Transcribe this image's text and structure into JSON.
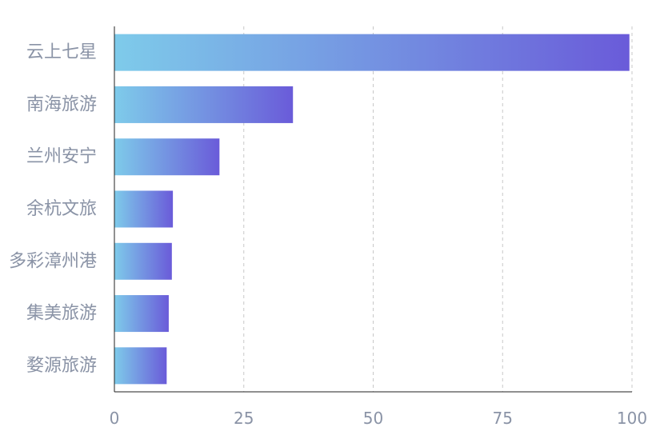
{
  "chart_data": {
    "type": "bar",
    "orientation": "horizontal",
    "categories": [
      "云上七星",
      "南海旅游",
      "兰州安宁",
      "余杭文旅",
      "多彩漳州港",
      "集美旅游",
      "婺源旅游"
    ],
    "values": [
      99.5,
      34.5,
      20.3,
      11.3,
      11.1,
      10.5,
      10.1
    ],
    "xlim": [
      0,
      100
    ],
    "xticks": [
      0,
      25,
      50,
      75,
      100
    ],
    "xtick_labels": [
      "0",
      "25",
      "50",
      "75",
      "100"
    ],
    "grid": "vertical-dashed",
    "bar_gradient": [
      "#7ecbea",
      "#6a5bd9"
    ],
    "axis_color": "#222222",
    "grid_color": "#c8c8c8",
    "label_color": "#8a93a6"
  }
}
